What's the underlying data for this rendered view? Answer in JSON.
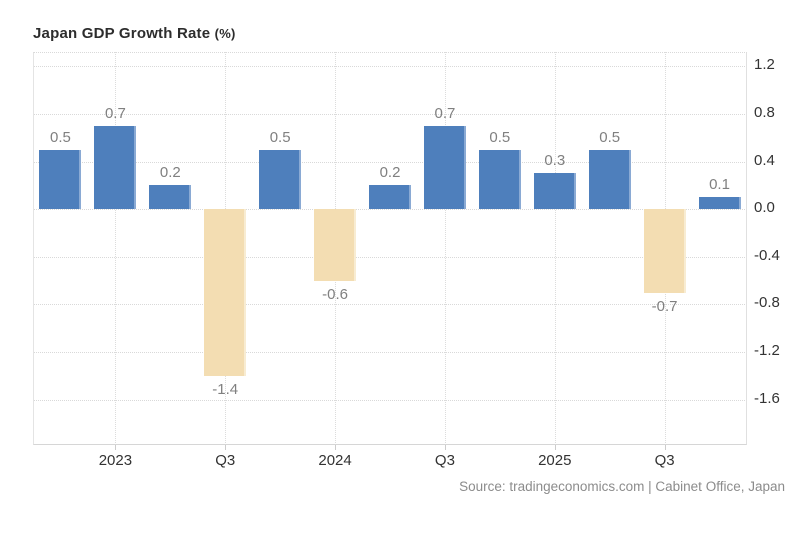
{
  "header": {
    "title": "Japan GDP Growth Rate",
    "title_suffix": "(%)"
  },
  "footer": {
    "source": "Source: tradingeconomics.com | Cabinet Office, Japan"
  },
  "chart_data": {
    "type": "bar",
    "title": "Japan GDP Growth Rate (%)",
    "xlabel": "",
    "ylabel": "",
    "values": [
      0.5,
      0.7,
      0.2,
      -1.4,
      0.5,
      -0.6,
      0.2,
      0.7,
      0.5,
      0.3,
      0.5,
      -0.7,
      0.1
    ],
    "bar_labels": [
      "0.5",
      "0.7",
      "0.2",
      "-1.4",
      "0.5",
      "-0.6",
      "0.2",
      "0.7",
      "0.5",
      "0.3",
      "0.5",
      "-0.7",
      "0.1"
    ],
    "xticks": [
      {
        "position": 1,
        "label": "2023"
      },
      {
        "position": 3,
        "label": "Q3"
      },
      {
        "position": 5,
        "label": "2024"
      },
      {
        "position": 7,
        "label": "Q3"
      },
      {
        "position": 9,
        "label": "2025"
      },
      {
        "position": 11,
        "label": "Q3"
      }
    ],
    "yticks": [
      1.2,
      0.8,
      0.4,
      0.0,
      -0.4,
      -0.8,
      -1.2,
      -1.6
    ],
    "ytick_labels": [
      "1.2",
      "0.8",
      "0.4",
      "0.0",
      "-0.4",
      "-0.8",
      "-1.2",
      "-1.6"
    ],
    "ylim": [
      -1.98,
      1.32
    ],
    "grid": "dotted",
    "legend": "none",
    "yaxis_side": "right",
    "colors": {
      "positive_bar": "#4e7fbc",
      "negative_bar": "#f3ddb2",
      "bar_value_label": "#808080",
      "axis_tick_label": "#333333",
      "grid_line": "#d9d9d9",
      "title_text": "#2d2d2d",
      "source_text": "#8c8c8c",
      "background": "#ffffff"
    }
  }
}
